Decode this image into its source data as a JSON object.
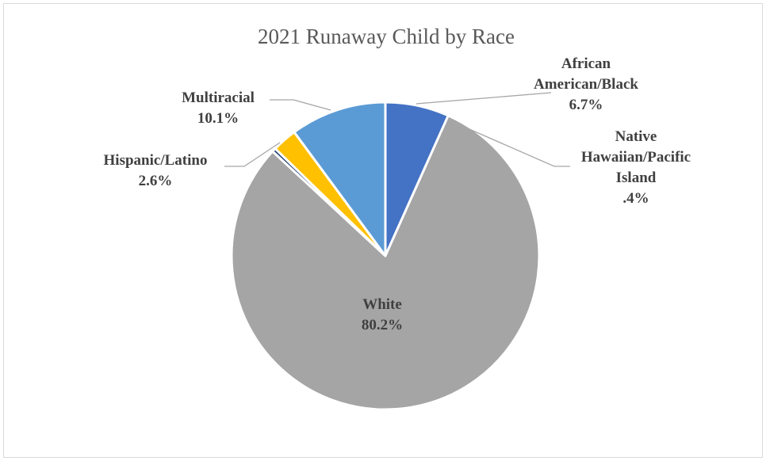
{
  "chart_data": {
    "type": "pie",
    "title": "2021 Runaway Child by Race",
    "slices": [
      {
        "name": "African American/Black",
        "label_lines": [
          "African",
          "American/Black",
          "6.7%"
        ],
        "value": 6.7,
        "color": "#4472c4"
      },
      {
        "name": "White",
        "label_lines": [
          "White",
          "80.2%"
        ],
        "value": 80.2,
        "color": "#a5a5a5"
      },
      {
        "name": "Native Hawaiian/Pacific Island",
        "label_lines": [
          "Native",
          "Hawaiian/Pacific",
          "Island",
          ".4%"
        ],
        "value": 0.4,
        "color": "#264478"
      },
      {
        "name": "Hispanic/Latino",
        "label_lines": [
          "Hispanic/Latino",
          "2.6%"
        ],
        "value": 2.6,
        "color": "#ffc000"
      },
      {
        "name": "Multiracial",
        "label_lines": [
          "Multiracial",
          "10.1%"
        ],
        "value": 10.1,
        "color": "#5b9bd5"
      }
    ],
    "legend": "none",
    "start_angle": "12 o'clock",
    "direction": "clockwise"
  }
}
